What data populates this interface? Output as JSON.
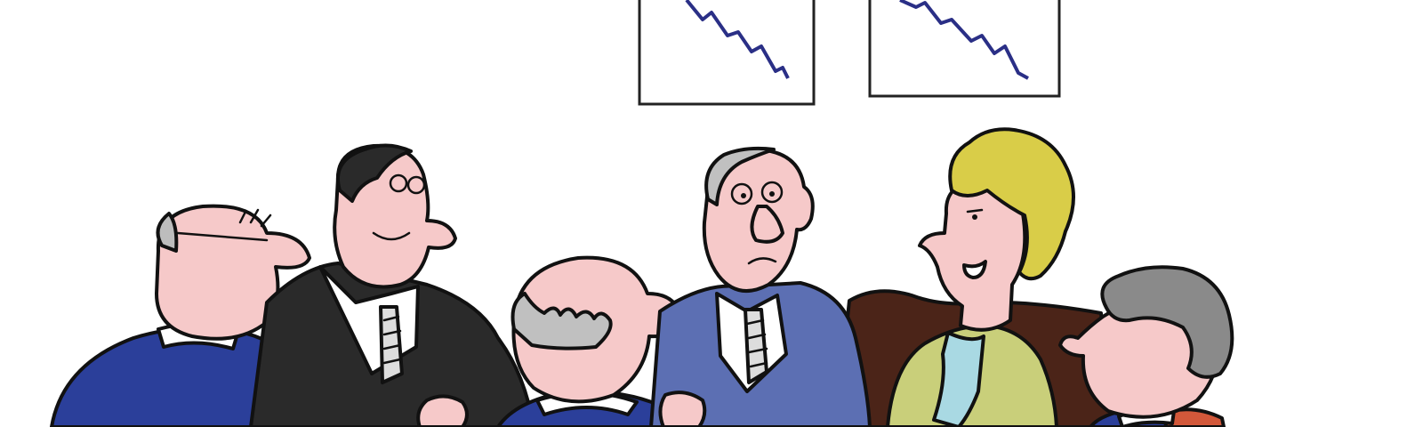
{
  "scene": {
    "subject": "cartoon-business-meeting",
    "icons": [
      "declining-chart-icon",
      "declining-chart-icon"
    ],
    "colors": {
      "background": "#ffffff",
      "skin": "#f6c9c9",
      "navy_suit": "#2b3f9a",
      "periwinkle_suit": "#5c6fb3",
      "dark_suit": "#2a2a2a",
      "brown_couch": "#4b2418",
      "olive_dress": "#c9cf7a",
      "blonde_hair": "#d9cd48",
      "gray_hair": "#8a8a8a",
      "chart_line": "#2a2f86",
      "scarf": "#a9d9e3",
      "orange_collar": "#d2583a"
    }
  }
}
